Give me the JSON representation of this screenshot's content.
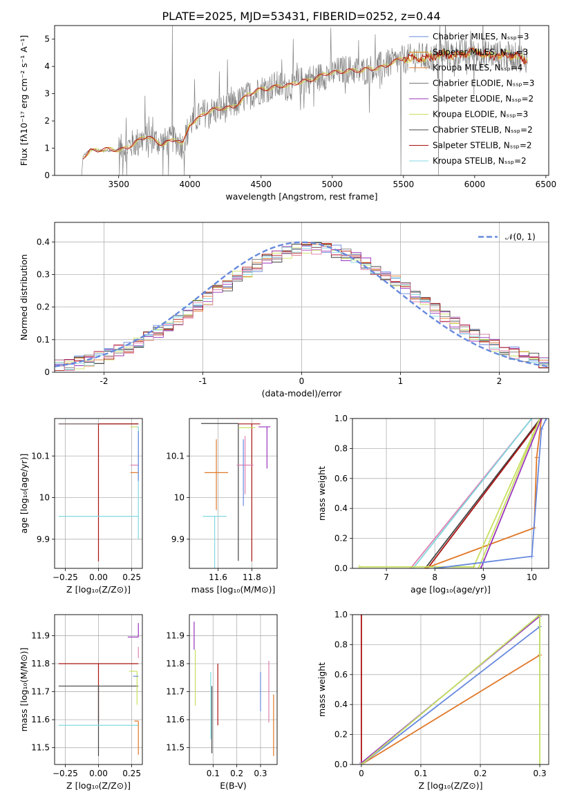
{
  "figure_title": "PLATE=2025, MJD=53431, FIBERID=0252, z=0.44",
  "colors": {
    "Chabrier MILES": "#6688dd",
    "Salpeter MILES": "#cc8800",
    "Kroupa MILES": "#e07828",
    "Chabrier ELODIE": "#777777",
    "Salpeter ELODIE": "#9933bb",
    "Kroupa ELODIE": "#c8e060",
    "Chabrier STELIB": "#444444",
    "Salpeter STELIB": "#aa1111",
    "Kroupa STELIB": "#80d8e0",
    "pink": "#e080b0",
    "data": "#808080"
  },
  "chart_data": [
    {
      "id": "spectrum",
      "type": "line",
      "xlabel": "wavelength [Angstrom, rest frame]",
      "ylabel": "Flux [fλ10⁻¹⁷ erg cm⁻² s⁻¹ A⁻¹]",
      "xlim": [
        3050,
        6520
      ],
      "ylim": [
        0,
        5.5
      ],
      "xticks": [
        3500,
        4000,
        4500,
        5000,
        5500,
        6000,
        6500
      ],
      "yticks": [
        0,
        1,
        2,
        3,
        4,
        5
      ],
      "legend_position": "right",
      "legend": [
        {
          "label": "Chabrier MILES, Nₛₛₚ=3",
          "color": "#6688dd"
        },
        {
          "label": "Salpeter MILES, Nₛₛₚ=3",
          "color": "#cc8800"
        },
        {
          "label": "Kroupa MILES, Nₛₛₚ=4",
          "color": "#e07828"
        },
        {
          "label": "Chabrier ELODIE, Nₛₛₚ=3",
          "color": "#777777"
        },
        {
          "label": "Salpeter ELODIE, Nₛₛₚ=2",
          "color": "#9933bb"
        },
        {
          "label": "Kroupa ELODIE, Nₛₛₚ=3",
          "color": "#c8e060"
        },
        {
          "label": "Chabrier STELIB, Nₛₛₚ=2",
          "color": "#444444"
        },
        {
          "label": "Salpeter STELIB, Nₛₛₚ=2",
          "color": "#aa1111"
        },
        {
          "label": "Kroupa STELIB, Nₛₛₚ=2",
          "color": "#80d8e0"
        }
      ],
      "model_curve": {
        "x": [
          3250,
          3300,
          3400,
          3500,
          3600,
          3700,
          3800,
          3900,
          3950,
          4000,
          4100,
          4200,
          4300,
          4400,
          4500,
          4600,
          4700,
          4800,
          4900,
          5000,
          5100,
          5200,
          5300,
          5400,
          5500,
          5600,
          5700,
          5800,
          5900,
          6000,
          6100,
          6200,
          6370
        ],
        "y": [
          0.7,
          0.95,
          0.9,
          0.95,
          1.15,
          1.4,
          1.2,
          1.3,
          1.1,
          1.9,
          2.3,
          2.4,
          2.55,
          2.9,
          3.15,
          3.3,
          3.25,
          3.5,
          3.6,
          3.75,
          3.9,
          3.8,
          3.95,
          4.1,
          4.25,
          4.35,
          4.3,
          4.45,
          4.45,
          4.5,
          4.45,
          4.4,
          4.3
        ]
      },
      "data_noise_from_x": 3500
    },
    {
      "id": "residuals",
      "type": "histogram",
      "xlabel": "(data-model)/error",
      "ylabel": "Normed distribution",
      "xlim": [
        -2.5,
        2.5
      ],
      "ylim": [
        0,
        0.46
      ],
      "xticks": [
        -2,
        -1,
        0,
        1,
        2
      ],
      "yticks": [
        0.0,
        0.1,
        0.2,
        0.3,
        0.4
      ],
      "grid": true,
      "reference_curve": {
        "label": "𝒩(0, 1)",
        "mean": 0,
        "sigma": 1,
        "color": "#6688dd",
        "style": "dashed"
      },
      "bin_width": 0.1,
      "histogram_shift": 0.12,
      "histogram_sigma": 1.05
    },
    {
      "id": "age_vs_Z",
      "type": "errorbar",
      "xlabel": "Z [log₁₀(Z/Z⊙)]",
      "ylabel": "age  [log₁₀(age/yr)]",
      "xlim": [
        -0.33,
        0.33
      ],
      "ylim": [
        9.83,
        10.19
      ],
      "xticks": [
        -0.25,
        0.0,
        0.25
      ],
      "xticklabels": [
        "−0.25",
        "0.00",
        "0.25"
      ],
      "yticks": [
        9.9,
        10.0,
        10.1
      ],
      "grid": true,
      "points": [
        {
          "color": "#aa1111",
          "x": 0.0,
          "y": 10.177,
          "xerr": [
            0.3,
            0.3
          ],
          "yerr": [
            0.33,
            0.0
          ]
        },
        {
          "color": "#777777",
          "x": 0.0,
          "y": 10.177,
          "xerr": [
            0.3,
            0.3
          ],
          "yerr": [
            0.0,
            0.0
          ]
        },
        {
          "color": "#c8e060",
          "x": 0.29,
          "y": 10.17,
          "xerr": [
            0.05,
            0.01
          ],
          "yerr": [
            0.0,
            0.0
          ]
        },
        {
          "color": "#80d8e0",
          "x": 0.3,
          "y": 10.17,
          "xerr": [
            0.01,
            0.0
          ],
          "yerr": [
            0.27,
            0.0
          ]
        },
        {
          "color": "#80d8e0",
          "x": 0.0,
          "y": 9.955,
          "xerr": [
            0.3,
            0.3
          ],
          "yerr": [
            0.0,
            0.0
          ]
        },
        {
          "color": "#e080b0",
          "x": 0.27,
          "y": 10.078,
          "xerr": [
            0.03,
            0.03
          ],
          "yerr": [
            0.0,
            0.0
          ]
        },
        {
          "color": "#e07828",
          "x": 0.27,
          "y": 10.06,
          "xerr": [
            0.03,
            0.03
          ],
          "yerr": [
            0.0,
            0.0
          ]
        },
        {
          "color": "#6688dd",
          "x": 0.3,
          "y": 10.1,
          "xerr": [
            0.0,
            0.0
          ],
          "yerr": [
            0.06,
            0.06
          ]
        },
        {
          "color": "#aa1111",
          "x": 0.3,
          "y": 10.177,
          "xerr": [
            0.3,
            0.0
          ],
          "yerr": [
            0.0,
            0.0
          ]
        }
      ]
    },
    {
      "id": "age_vs_mass",
      "type": "errorbar",
      "xlabel": "mass [log₁₀(M/M⊙)]",
      "ylabel": "",
      "xlim": [
        11.43,
        11.95
      ],
      "ylim": [
        9.83,
        10.19
      ],
      "xticks": [
        11.6,
        11.8
      ],
      "yticks": [
        9.9,
        10.0,
        10.1
      ],
      "grid": true,
      "points": [
        {
          "color": "#444444",
          "x": 11.72,
          "y": 10.178,
          "xerr": [
            0.22,
            0.0
          ],
          "yerr": [
            0.33,
            0.0
          ]
        },
        {
          "color": "#aa1111",
          "x": 11.8,
          "y": 10.177,
          "xerr": [
            0.08,
            0.05
          ],
          "yerr": [
            0.33,
            0.0
          ]
        },
        {
          "color": "#9933bb",
          "x": 11.89,
          "y": 10.17,
          "xerr": [
            0.05,
            0.02
          ],
          "yerr": [
            0.0,
            0.0
          ]
        },
        {
          "color": "#9933bb",
          "x": 11.89,
          "y": 10.12,
          "xerr": [
            0.0,
            0.0
          ],
          "yerr": [
            0.05,
            0.05
          ]
        },
        {
          "color": "#c8e060",
          "x": 11.77,
          "y": 10.168,
          "xerr": [
            0.05,
            0.05
          ],
          "yerr": [
            0.0,
            0.0
          ]
        },
        {
          "color": "#80d8e0",
          "x": 11.58,
          "y": 9.955,
          "xerr": [
            0.07,
            0.07
          ],
          "yerr": [
            0.15,
            0.0
          ]
        },
        {
          "color": "#e07828",
          "x": 11.59,
          "y": 10.06,
          "xerr": [
            0.07,
            0.07
          ],
          "yerr": [
            0.09,
            0.08
          ]
        },
        {
          "color": "#e080b0",
          "x": 11.76,
          "y": 10.078,
          "xerr": [
            0.05,
            0.05
          ],
          "yerr": [
            0.07,
            0.07
          ]
        },
        {
          "color": "#6688dd",
          "x": 11.75,
          "y": 10.06,
          "xerr": [
            0.0,
            0.0
          ],
          "yerr": [
            0.08,
            0.08
          ]
        }
      ]
    },
    {
      "id": "cumulative_age",
      "type": "line",
      "xlabel": "age  [log₁₀(age/yr)]",
      "ylabel": "mass weight",
      "xlim": [
        6.3,
        10.35
      ],
      "ylim": [
        0.0,
        1.0
      ],
      "xticks": [
        7,
        8,
        9,
        10
      ],
      "yticks": [
        0.0,
        0.2,
        0.4,
        0.6,
        0.8,
        1.0
      ],
      "yticklabels": [
        "0.0",
        "0.2",
        "0.4",
        "0.6",
        "0.8",
        "1.0"
      ],
      "grid": true,
      "series": [
        {
          "color": "#e080b0",
          "x": [
            7.5,
            10.0
          ],
          "y": [
            0.0,
            1.0
          ]
        },
        {
          "color": "#80d8e0",
          "x": [
            7.55,
            10.0
          ],
          "y": [
            0.0,
            1.0
          ]
        },
        {
          "color": "#444444",
          "x": [
            7.8,
            10.18
          ],
          "y": [
            0.0,
            1.0
          ]
        },
        {
          "color": "#aa1111",
          "x": [
            7.85,
            10.2
          ],
          "y": [
            0.0,
            1.0
          ]
        },
        {
          "color": "#e07828",
          "x": [
            7.8,
            10.05,
            10.1,
            10.2
          ],
          "y": [
            0.0,
            0.27,
            0.74,
            1.0
          ]
        },
        {
          "color": "#c8e060",
          "x": [
            6.45,
            8.8,
            10.17
          ],
          "y": [
            0.01,
            0.01,
            1.0
          ]
        },
        {
          "color": "#c8e060",
          "x": [
            8.9,
            10.17
          ],
          "y": [
            0.0,
            1.0
          ]
        },
        {
          "color": "#9933bb",
          "x": [
            8.95,
            10.2
          ],
          "y": [
            0.0,
            1.0
          ]
        },
        {
          "color": "#6688dd",
          "x": [
            8.0,
            9.0,
            10.0,
            10.2,
            10.3
          ],
          "y": [
            0.0,
            0.04,
            0.08,
            0.93,
            1.0
          ]
        }
      ]
    },
    {
      "id": "mass_vs_Z",
      "type": "errorbar",
      "xlabel": "Z [log₁₀(Z/Z⊙)]",
      "ylabel": "mass [log₁₀(M/M⊙)]",
      "xlim": [
        -0.33,
        0.33
      ],
      "ylim": [
        11.44,
        11.975
      ],
      "xticks": [
        -0.25,
        0.0,
        0.25
      ],
      "xticklabels": [
        "−0.25",
        "0.00",
        "0.25"
      ],
      "yticks": [
        11.5,
        11.6,
        11.7,
        11.8,
        11.9
      ],
      "grid": true,
      "points": [
        {
          "color": "#aa1111",
          "x": 0.0,
          "y": 11.8,
          "xerr": [
            0.3,
            0.3
          ],
          "yerr": [
            0.21,
            0.0
          ]
        },
        {
          "color": "#444444",
          "x": 0.0,
          "y": 11.72,
          "xerr": [
            0.3,
            0.3
          ],
          "yerr": [
            0.25,
            0.0
          ]
        },
        {
          "color": "#80d8e0",
          "x": 0.0,
          "y": 11.58,
          "xerr": [
            0.3,
            0.3
          ],
          "yerr": [
            0.0,
            0.0
          ]
        },
        {
          "color": "#9933bb",
          "x": 0.3,
          "y": 11.895,
          "xerr": [
            0.08,
            0.0
          ],
          "yerr": [
            0.0,
            0.05
          ]
        },
        {
          "color": "#c8e060",
          "x": 0.29,
          "y": 11.773,
          "xerr": [
            0.06,
            0.0
          ],
          "yerr": [
            0.12,
            0.0
          ]
        },
        {
          "color": "#6688dd",
          "x": 0.3,
          "y": 11.755,
          "xerr": [
            0.04,
            0.0
          ],
          "yerr": [
            0.0,
            0.0
          ]
        },
        {
          "color": "#e07828",
          "x": 0.3,
          "y": 11.595,
          "xerr": [
            0.03,
            0.0
          ],
          "yerr": [
            0.12,
            0.0
          ]
        },
        {
          "color": "#e080b0",
          "x": 0.3,
          "y": 11.84,
          "xerr": [
            0.0,
            0.0
          ],
          "yerr": [
            0.02,
            0.02
          ]
        }
      ]
    },
    {
      "id": "mass_vs_ebv",
      "type": "errorbar",
      "xlabel": "E(B-V)",
      "ylabel": "",
      "xlim": [
        0.0,
        0.37
      ],
      "ylim": [
        11.44,
        11.975
      ],
      "xticks": [
        0.1,
        0.2,
        0.3
      ],
      "yticks": [
        11.5,
        11.6,
        11.7,
        11.8,
        11.9
      ],
      "grid": true,
      "points": [
        {
          "color": "#9933bb",
          "x": 0.02,
          "y": 11.9,
          "xerr": [
            0.0,
            0.0
          ],
          "yerr": [
            0.05,
            0.05
          ]
        },
        {
          "color": "#c8e060",
          "x": 0.025,
          "y": 11.75,
          "xerr": [
            0.0,
            0.0
          ],
          "yerr": [
            0.1,
            0.1
          ]
        },
        {
          "color": "#444444",
          "x": 0.095,
          "y": 11.6,
          "xerr": [
            0.0,
            0.0
          ],
          "yerr": [
            0.12,
            0.12
          ]
        },
        {
          "color": "#80d8e0",
          "x": 0.09,
          "y": 11.65,
          "xerr": [
            0.0,
            0.0
          ],
          "yerr": [
            0.12,
            0.12
          ]
        },
        {
          "color": "#aa1111",
          "x": 0.12,
          "y": 11.69,
          "xerr": [
            0.0,
            0.0
          ],
          "yerr": [
            0.11,
            0.11
          ]
        },
        {
          "color": "#6688dd",
          "x": 0.3,
          "y": 11.7,
          "xerr": [
            0.0,
            0.0
          ],
          "yerr": [
            0.07,
            0.07
          ]
        },
        {
          "color": "#e080b0",
          "x": 0.335,
          "y": 11.7,
          "xerr": [
            0.0,
            0.0
          ],
          "yerr": [
            0.11,
            0.11
          ]
        },
        {
          "color": "#e07828",
          "x": 0.355,
          "y": 11.58,
          "xerr": [
            0.0,
            0.0
          ],
          "yerr": [
            0.11,
            0.11
          ]
        }
      ]
    },
    {
      "id": "cumulative_Z",
      "type": "line",
      "xlabel": "Z [log₁₀(Z/Z⊙)]",
      "ylabel": "mass weight",
      "xlim": [
        -0.015,
        0.315
      ],
      "ylim": [
        0.0,
        1.0
      ],
      "xticks": [
        0.0,
        0.1,
        0.2,
        0.3
      ],
      "yticks": [
        0.0,
        0.2,
        0.4,
        0.6,
        0.8,
        1.0
      ],
      "yticklabels": [
        "0.0",
        "0.2",
        "0.4",
        "0.6",
        "0.8",
        "1.0"
      ],
      "grid": true,
      "series": [
        {
          "color": "#aa1111",
          "x": [
            0.0,
            0.0
          ],
          "y": [
            0.0,
            1.0
          ]
        },
        {
          "color": "#e07828",
          "x": [
            0.0,
            0.3,
            0.3
          ],
          "y": [
            0.0,
            0.73,
            1.0
          ]
        },
        {
          "color": "#6688dd",
          "x": [
            0.0,
            0.3,
            0.3
          ],
          "y": [
            0.0,
            0.92,
            1.0
          ]
        },
        {
          "color": "#9933bb",
          "x": [
            0.0,
            0.3
          ],
          "y": [
            0.01,
            0.99
          ]
        },
        {
          "color": "#80d8e0",
          "x": [
            0.0,
            0.3,
            0.3
          ],
          "y": [
            0.0,
            1.0,
            0.0
          ]
        },
        {
          "color": "#c8e060",
          "x": [
            0.0,
            0.3,
            0.3
          ],
          "y": [
            0.0,
            1.0,
            0.0
          ]
        }
      ]
    }
  ]
}
